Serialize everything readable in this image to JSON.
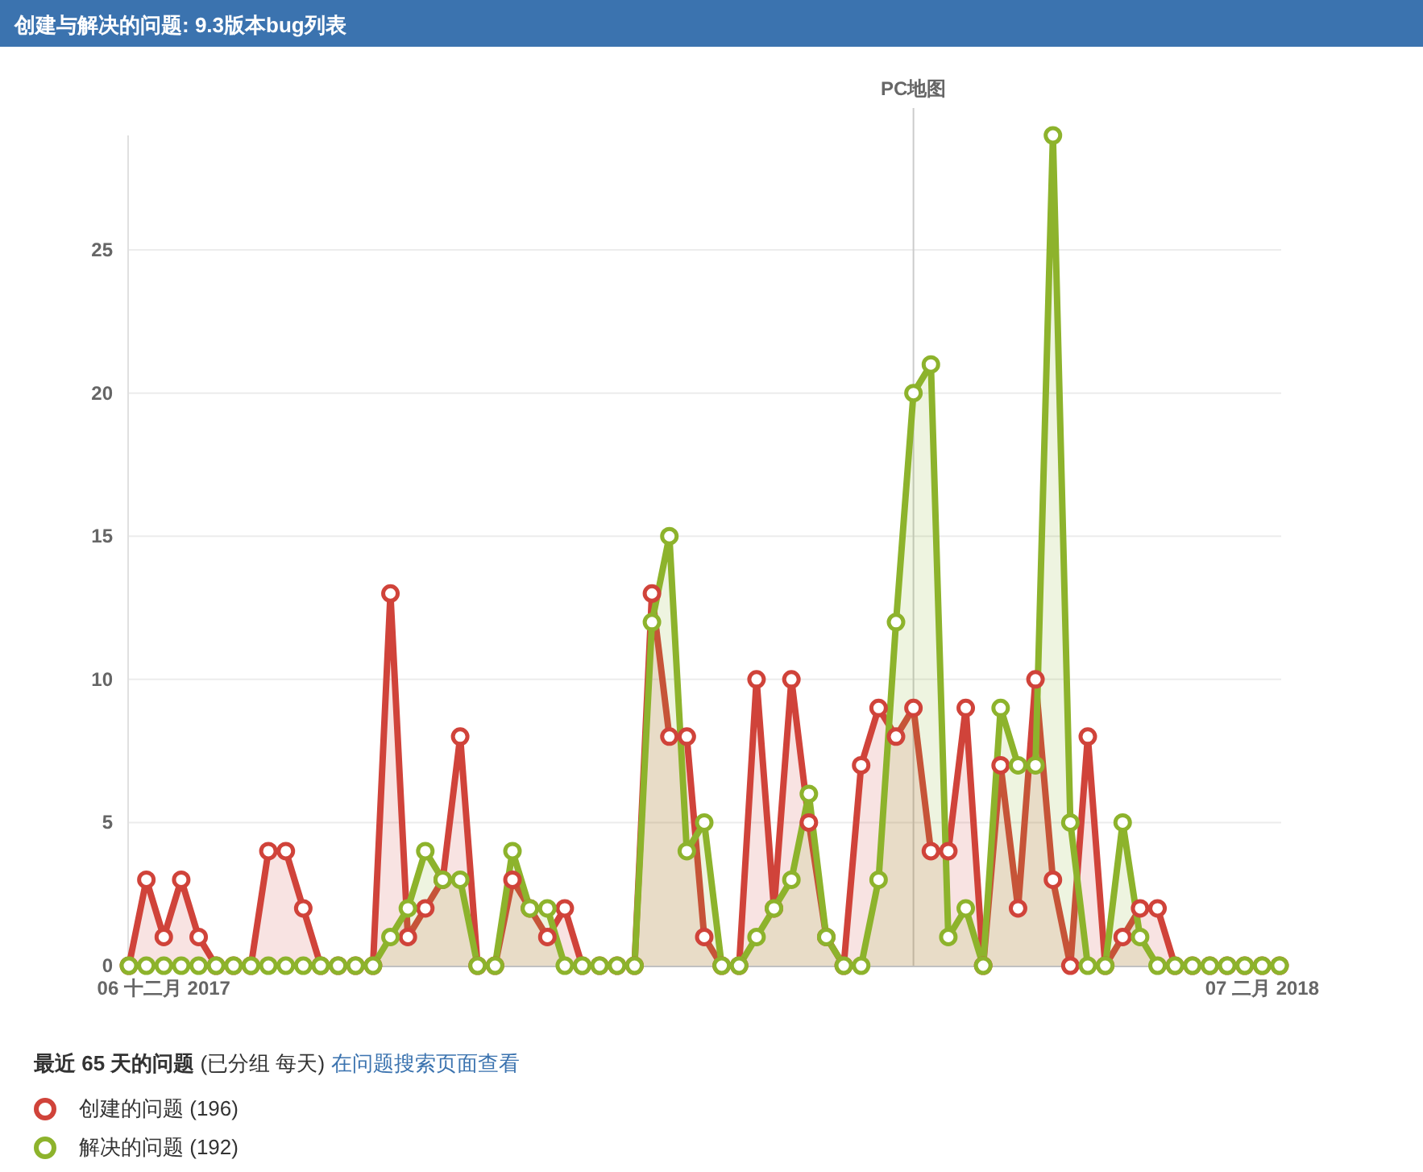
{
  "chart_data": {
    "type": "area",
    "title": "创建与解决的问题: 9.3版本bug列表",
    "x": [
      "2017-12-04",
      "2017-12-05",
      "2017-12-06",
      "2017-12-07",
      "2017-12-08",
      "2017-12-09",
      "2017-12-10",
      "2017-12-11",
      "2017-12-12",
      "2017-12-13",
      "2017-12-14",
      "2017-12-15",
      "2017-12-16",
      "2017-12-17",
      "2017-12-18",
      "2017-12-19",
      "2017-12-20",
      "2017-12-21",
      "2017-12-22",
      "2017-12-23",
      "2017-12-24",
      "2017-12-25",
      "2017-12-26",
      "2017-12-27",
      "2017-12-28",
      "2017-12-29",
      "2017-12-30",
      "2017-12-31",
      "2018-01-01",
      "2018-01-02",
      "2018-01-03",
      "2018-01-04",
      "2018-01-05",
      "2018-01-06",
      "2018-01-07",
      "2018-01-08",
      "2018-01-09",
      "2018-01-10",
      "2018-01-11",
      "2018-01-12",
      "2018-01-13",
      "2018-01-14",
      "2018-01-15",
      "2018-01-16",
      "2018-01-17",
      "2018-01-18",
      "2018-01-19",
      "2018-01-20",
      "2018-01-21",
      "2018-01-22",
      "2018-01-23",
      "2018-01-24",
      "2018-01-25",
      "2018-01-26",
      "2018-01-27",
      "2018-01-28",
      "2018-01-29",
      "2018-01-30",
      "2018-01-31",
      "2018-02-01",
      "2018-02-02",
      "2018-02-03",
      "2018-02-04",
      "2018-02-05",
      "2018-02-06",
      "2018-02-07",
      "2018-02-08"
    ],
    "series": [
      {
        "name": "创建的问题 (196)",
        "color": "#d0433a",
        "values": [
          0,
          3,
          1,
          3,
          1,
          0,
          0,
          0,
          4,
          4,
          2,
          0,
          0,
          0,
          0,
          13,
          1,
          2,
          3,
          8,
          0,
          0,
          3,
          2,
          1,
          2,
          0,
          0,
          0,
          0,
          13,
          8,
          8,
          1,
          0,
          0,
          10,
          2,
          10,
          5,
          1,
          0,
          7,
          9,
          8,
          9,
          4,
          4,
          9,
          0,
          7,
          2,
          10,
          3,
          0,
          8,
          0,
          1,
          2,
          2,
          0,
          0,
          0,
          0,
          0,
          0,
          0
        ]
      },
      {
        "name": "解决的问题 (192)",
        "color": "#8db32c",
        "values": [
          0,
          0,
          0,
          0,
          0,
          0,
          0,
          0,
          0,
          0,
          0,
          0,
          0,
          0,
          0,
          1,
          2,
          4,
          3,
          3,
          0,
          0,
          4,
          2,
          2,
          0,
          0,
          0,
          0,
          0,
          12,
          15,
          4,
          5,
          0,
          0,
          1,
          2,
          3,
          6,
          1,
          0,
          0,
          3,
          12,
          20,
          21,
          1,
          2,
          0,
          9,
          7,
          7,
          29,
          5,
          0,
          0,
          5,
          1,
          0,
          0,
          0,
          0,
          0,
          0,
          0,
          0
        ]
      }
    ],
    "xlim": [
      "2017-12-04",
      "2018-02-08"
    ],
    "xticks": [
      {
        "value": "2017-12-06",
        "label": "06 十二月 2017"
      },
      {
        "value": "2018-02-07",
        "label": "07 二月 2018"
      }
    ],
    "ylim": [
      0,
      29
    ],
    "yticks": [
      0,
      5,
      10,
      15,
      20,
      25
    ],
    "ref_lines": [
      {
        "axis": "x",
        "value": "2018-01-18",
        "label": "PC地图",
        "color": "#cccccc"
      }
    ],
    "annotations": [
      "**最近 65 天的问题** (已分组 每天)",
      "在问题搜索页面查看"
    ],
    "grid": "y",
    "legend": "bottom",
    "marker": "circle",
    "line_style": "solid"
  }
}
